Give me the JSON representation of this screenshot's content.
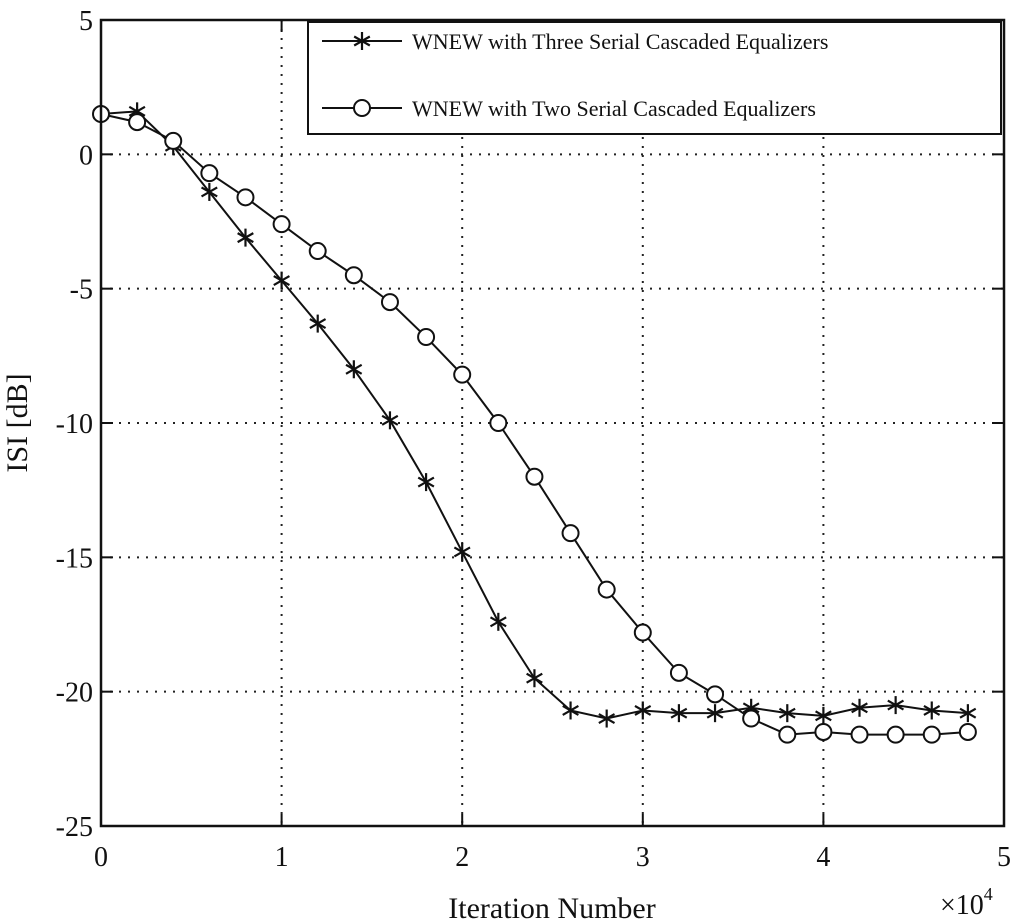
{
  "chart_data": {
    "type": "line",
    "title": "",
    "xlabel": "Iteration Number",
    "ylabel": "ISI [dB]",
    "x_multiplier": "×10^4",
    "x_multiplier_base": "×10",
    "x_multiplier_exp": "4",
    "xlim": [
      0,
      5
    ],
    "ylim": [
      -25,
      5
    ],
    "xticks": [
      0,
      1,
      2,
      3,
      4,
      5
    ],
    "yticks": [
      5,
      0,
      -5,
      -10,
      -15,
      -20,
      -25
    ],
    "grid": true,
    "legend_placement": "top-right",
    "x": [
      0,
      0.2,
      0.4,
      0.6,
      0.8,
      1.0,
      1.2,
      1.4,
      1.6,
      1.8,
      2.0,
      2.2,
      2.4,
      2.6,
      2.8,
      3.0,
      3.2,
      3.4,
      3.6,
      3.8,
      4.0,
      4.2,
      4.4,
      4.6,
      4.8
    ],
    "series": [
      {
        "name": "WNEW with Three Serial Cascaded Equalizers",
        "marker": "asterisk",
        "color": "#111111",
        "values": [
          1.5,
          1.6,
          0.3,
          -1.4,
          -3.1,
          -4.7,
          -6.3,
          -8.0,
          -9.9,
          -12.2,
          -14.8,
          -17.4,
          -19.5,
          -20.7,
          -21.0,
          -20.7,
          -20.8,
          -20.8,
          -20.6,
          -20.8,
          -20.9,
          -20.6,
          -20.5,
          -20.7,
          -20.8
        ]
      },
      {
        "name": "WNEW with Two Serial Cascaded Equalizers",
        "marker": "circle",
        "color": "#111111",
        "values": [
          1.5,
          1.2,
          0.5,
          -0.7,
          -1.6,
          -2.6,
          -3.6,
          -4.5,
          -5.5,
          -6.8,
          -8.2,
          -10.0,
          -12.0,
          -14.1,
          -16.2,
          -17.8,
          -19.3,
          -20.1,
          -21.0,
          -21.6,
          -21.5,
          -21.6,
          -21.6,
          -21.6,
          -21.5
        ]
      }
    ]
  }
}
